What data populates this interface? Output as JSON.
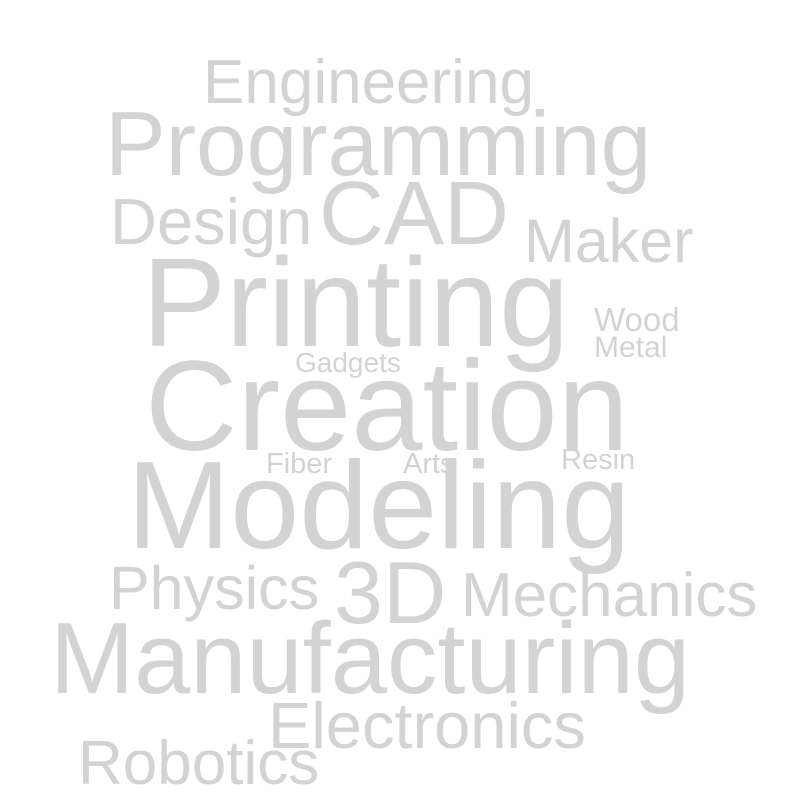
{
  "word_cloud": {
    "color": "#d3d3d3",
    "background": "#ffffff",
    "words": {
      "engineering": "Engineering",
      "programming": "Programming",
      "design": "Design",
      "cad": "CAD",
      "maker": "Maker",
      "printing": "Printing",
      "wood": "Wood",
      "metal": "Metal",
      "gadgets": "Gadgets",
      "creation": "Creation",
      "fiber": "Fiber",
      "arts": "Arts",
      "resin": "Resin",
      "modeling": "Modeling",
      "physics": "Physics",
      "three_d": "3D",
      "mechanics": "Mechanics",
      "manufacturing": "Manufacturing",
      "electronics": "Electronics",
      "robotics": "Robotics"
    }
  }
}
